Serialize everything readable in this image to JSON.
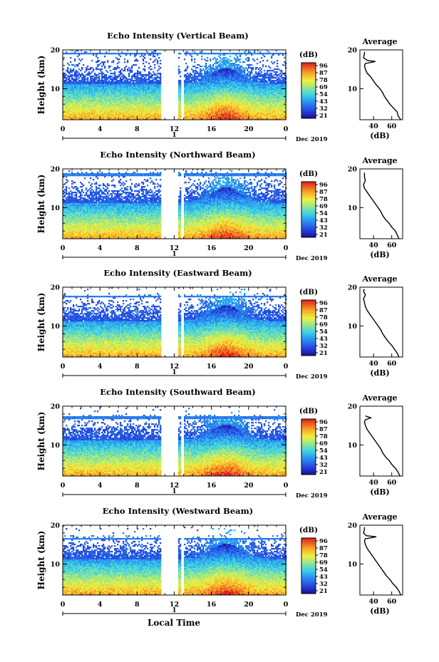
{
  "figure": {
    "height_label": "Height (km)",
    "avg_title": "Average",
    "avg_xlabel": "(dB)",
    "colorbar_unit": "(dB)",
    "colorbar_ticks": [
      "96",
      "87",
      "78",
      "69",
      "54",
      "43",
      "32",
      "21"
    ],
    "month_label": "Dec 2019",
    "day_label": "1",
    "xlabel": "Local Time",
    "colors": {
      "white": "#ffffff",
      "black": "#000000"
    }
  },
  "chart_data": [
    {
      "type": "heatmap",
      "title": "Echo Intensity (Vertical Beam)",
      "x_ticks": [
        "0",
        "4",
        "8",
        "12",
        "16",
        "20",
        "0"
      ],
      "y_ticks": [
        "20",
        "10"
      ],
      "xlim": [
        0,
        24
      ],
      "ylim": [
        2,
        20
      ],
      "gaps": [
        [
          10.5,
          12.3
        ],
        [
          12.7,
          13.0
        ]
      ],
      "top_km": 19.5,
      "colorscale_db": [
        21,
        96
      ],
      "average_profile": {
        "x_ticks": [
          "40",
          "60"
        ],
        "y_ticks": [
          "20",
          "10"
        ],
        "xlim": [
          25,
          72
        ],
        "ylim": [
          2,
          20
        ],
        "height_km": [
          2,
          3,
          4,
          5,
          6,
          7,
          8,
          9,
          10,
          11,
          12,
          13,
          14,
          15,
          16,
          16.5,
          17,
          17.3,
          18,
          19,
          19.5
        ],
        "db": [
          70,
          67,
          66,
          62,
          58,
          55,
          52,
          50,
          47,
          43,
          40,
          37,
          33,
          31,
          30,
          31,
          42,
          33,
          29,
          30,
          30
        ]
      }
    },
    {
      "type": "heatmap",
      "title": "Echo Intensity (Northward Beam)",
      "x_ticks": [
        "0",
        "4",
        "8",
        "12",
        "16",
        "20",
        "0"
      ],
      "y_ticks": [
        "20",
        "10"
      ],
      "xlim": [
        0,
        24
      ],
      "ylim": [
        2,
        20
      ],
      "gaps": [
        [
          10.5,
          12.3
        ],
        [
          12.7,
          13.0
        ]
      ],
      "top_km": 19.0,
      "colorscale_db": [
        21,
        96
      ],
      "average_profile": {
        "x_ticks": [
          "40",
          "60"
        ],
        "y_ticks": [
          "20",
          "10"
        ],
        "xlim": [
          25,
          72
        ],
        "ylim": [
          2,
          20
        ],
        "height_km": [
          2,
          3,
          4,
          5,
          6,
          7,
          8,
          9,
          10,
          11,
          12,
          13,
          14,
          15,
          16,
          17,
          18,
          19
        ],
        "db": [
          68,
          66,
          64,
          60,
          57,
          53,
          50,
          48,
          45,
          42,
          39,
          36,
          33,
          30,
          29,
          31,
          30,
          30
        ]
      }
    },
    {
      "type": "heatmap",
      "title": "Echo Intensity (Eastward Beam)",
      "x_ticks": [
        "0",
        "4",
        "8",
        "12",
        "16",
        "20",
        "0"
      ],
      "y_ticks": [
        "20",
        "10"
      ],
      "xlim": [
        0,
        24
      ],
      "ylim": [
        2,
        20
      ],
      "gaps": [
        [
          10.5,
          12.3
        ],
        [
          12.7,
          13.0
        ]
      ],
      "top_km": 18.0,
      "colorscale_db": [
        21,
        96
      ],
      "average_profile": {
        "x_ticks": [
          "40",
          "60"
        ],
        "y_ticks": [
          "20",
          "10"
        ],
        "xlim": [
          25,
          72
        ],
        "ylim": [
          2,
          20
        ],
        "height_km": [
          2,
          3,
          4,
          5,
          6,
          7,
          8,
          9,
          10,
          11,
          12,
          13,
          14,
          15,
          16,
          17,
          18,
          19,
          19.5
        ],
        "db": [
          68,
          66,
          63,
          60,
          56,
          53,
          50,
          48,
          45,
          42,
          39,
          36,
          33,
          31,
          30,
          29,
          31,
          29,
          30
        ]
      }
    },
    {
      "type": "heatmap",
      "title": "Echo Intensity (Southward Beam)",
      "x_ticks": [
        "0",
        "4",
        "8",
        "12",
        "16",
        "20",
        "0"
      ],
      "y_ticks": [
        "20",
        "10"
      ],
      "xlim": [
        0,
        24
      ],
      "ylim": [
        2,
        20
      ],
      "gaps": [
        [
          10.5,
          12.3
        ],
        [
          12.7,
          13.0
        ]
      ],
      "top_km": 17.5,
      "colorscale_db": [
        21,
        96
      ],
      "average_profile": {
        "x_ticks": [
          "40",
          "60"
        ],
        "y_ticks": [
          "20",
          "10"
        ],
        "xlim": [
          25,
          72
        ],
        "ylim": [
          2,
          20
        ],
        "height_km": [
          2,
          3,
          4,
          5,
          6,
          7,
          8,
          9,
          10,
          11,
          12,
          13,
          14,
          15,
          16,
          16.5,
          17,
          17.5
        ],
        "db": [
          69,
          67,
          64,
          60,
          57,
          53,
          50,
          48,
          45,
          42,
          39,
          36,
          33,
          31,
          30,
          31,
          37,
          31
        ]
      }
    },
    {
      "type": "heatmap",
      "title": "Echo Intensity (Westward Beam)",
      "x_ticks": [
        "0",
        "4",
        "8",
        "12",
        "16",
        "20",
        "0"
      ],
      "y_ticks": [
        "20",
        "10"
      ],
      "xlim": [
        0,
        24
      ],
      "ylim": [
        2,
        20
      ],
      "gaps": [
        [
          10.5,
          12.3
        ],
        [
          12.7,
          13.0
        ]
      ],
      "top_km": 17.0,
      "colorscale_db": [
        21,
        96
      ],
      "average_profile": {
        "x_ticks": [
          "40",
          "60"
        ],
        "y_ticks": [
          "20",
          "10"
        ],
        "xlim": [
          25,
          72
        ],
        "ylim": [
          2,
          20
        ],
        "height_km": [
          2,
          3,
          4,
          5,
          6,
          7,
          8,
          9,
          10,
          11,
          12,
          13,
          14,
          15,
          16,
          16.5,
          17,
          17.3,
          18,
          19,
          19.5
        ],
        "db": [
          70,
          68,
          65,
          61,
          58,
          54,
          51,
          48,
          45,
          42,
          39,
          36,
          33,
          31,
          30,
          31,
          43,
          32,
          29,
          30,
          30
        ]
      }
    }
  ]
}
